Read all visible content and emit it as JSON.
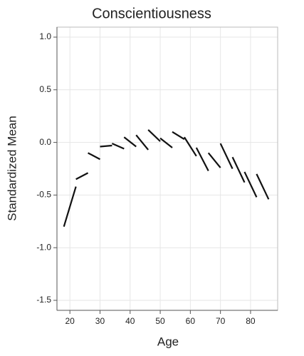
{
  "chart_data": {
    "type": "line",
    "title": "Conscientiousness",
    "x_label": "Age",
    "y_label": "Standardized Mean",
    "color": "#111111",
    "grid": true,
    "xlim": [
      15.7,
      89
    ],
    "ylim": [
      -1.595,
      1.095
    ],
    "xticks": [
      20,
      30,
      40,
      50,
      60,
      70,
      80
    ],
    "yticks": [
      {
        "value": 1.0,
        "label": "1.0"
      },
      0.5,
      {
        "value": 0.0,
        "label": "0.0"
      },
      -0.5,
      {
        "value": -1.0,
        "label": "-1.0"
      },
      -1.5
    ],
    "series": [
      {
        "x": [
          18,
          22
        ],
        "values": [
          -0.8,
          -0.42
        ]
      },
      {
        "x": [
          22,
          26
        ],
        "values": [
          -0.35,
          -0.29
        ]
      },
      {
        "x": [
          26,
          30
        ],
        "values": [
          -0.1,
          -0.16
        ]
      },
      {
        "x": [
          30,
          34
        ],
        "values": [
          -0.04,
          -0.03
        ]
      },
      {
        "x": [
          34,
          38
        ],
        "values": [
          -0.01,
          -0.06
        ]
      },
      {
        "x": [
          38,
          42
        ],
        "values": [
          0.05,
          -0.04
        ]
      },
      {
        "x": [
          42,
          46
        ],
        "values": [
          0.07,
          -0.07
        ]
      },
      {
        "x": [
          46,
          50
        ],
        "values": [
          0.12,
          0.01
        ]
      },
      {
        "x": [
          50,
          54
        ],
        "values": [
          0.04,
          -0.05
        ]
      },
      {
        "x": [
          54,
          58
        ],
        "values": [
          0.1,
          0.03
        ]
      },
      {
        "x": [
          58,
          62
        ],
        "values": [
          0.05,
          -0.13
        ]
      },
      {
        "x": [
          62,
          66
        ],
        "values": [
          -0.05,
          -0.27
        ]
      },
      {
        "x": [
          66,
          70
        ],
        "values": [
          -0.1,
          -0.24
        ]
      },
      {
        "x": [
          70,
          74
        ],
        "values": [
          -0.01,
          -0.25
        ]
      },
      {
        "x": [
          74,
          78
        ],
        "values": [
          -0.14,
          -0.38
        ]
      },
      {
        "x": [
          78,
          82
        ],
        "values": [
          -0.28,
          -0.52
        ]
      },
      {
        "x": [
          82,
          86
        ],
        "values": [
          -0.3,
          -0.54
        ]
      }
    ]
  }
}
